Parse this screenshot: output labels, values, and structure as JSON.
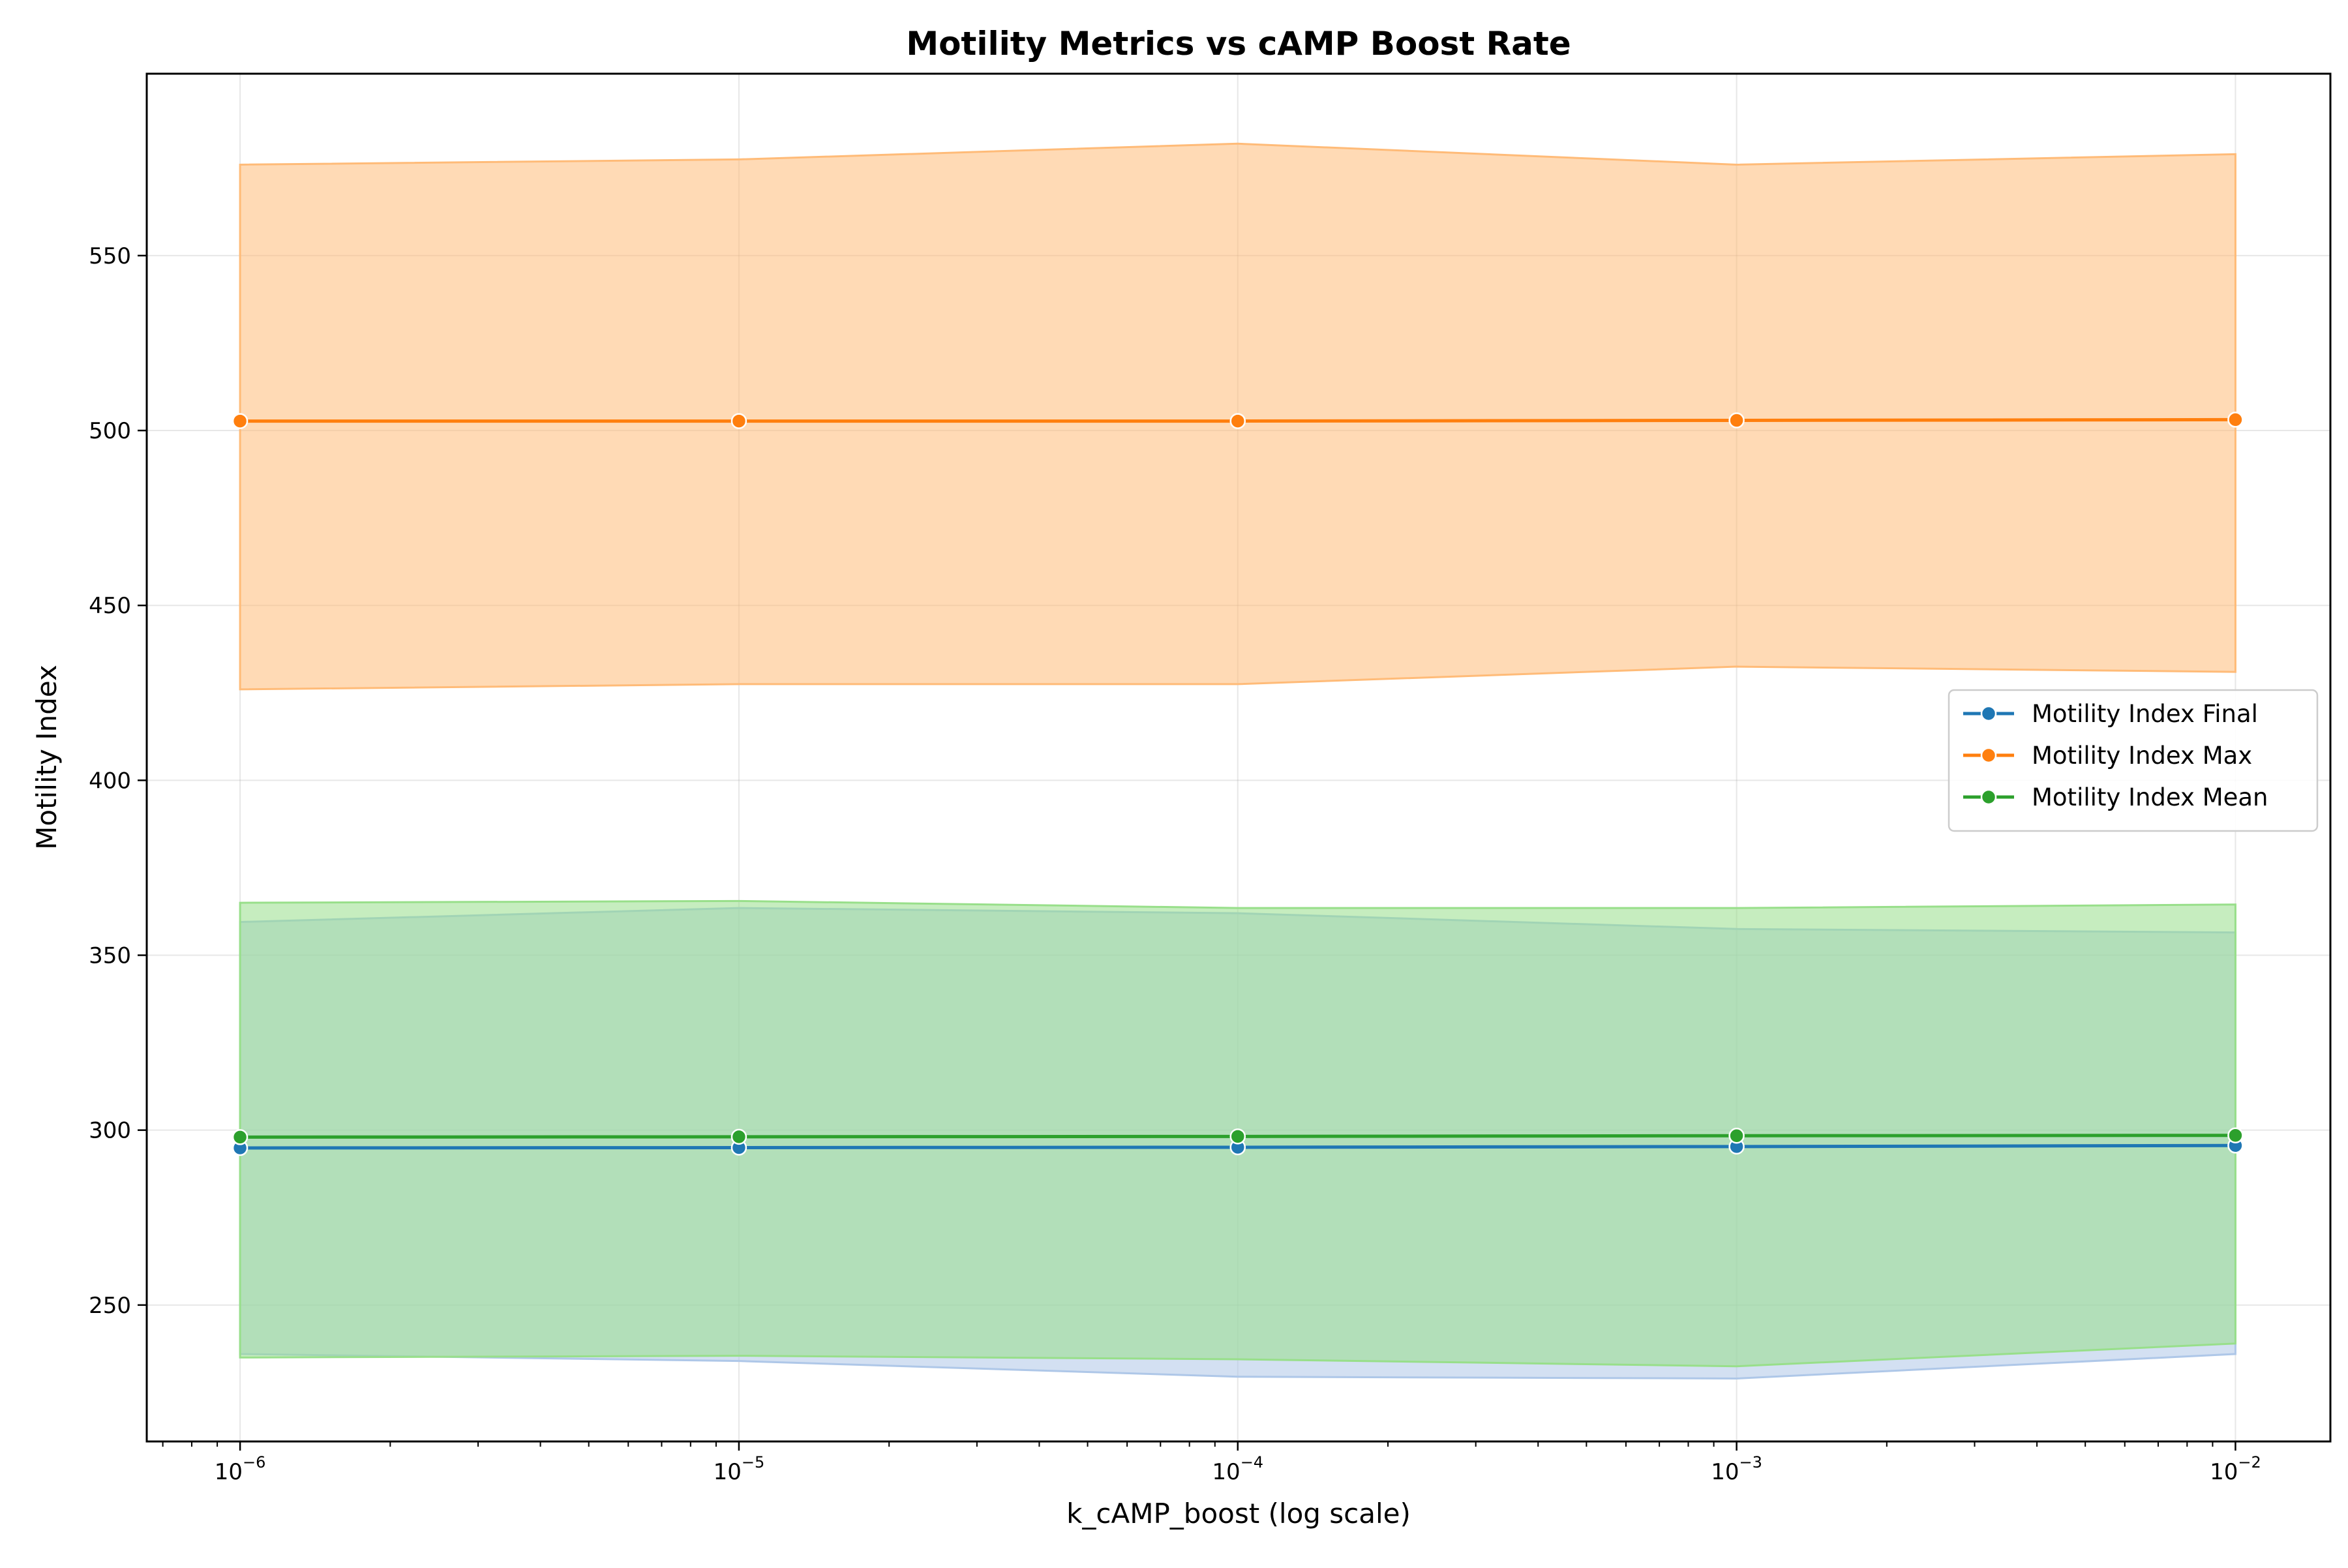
{
  "chart_data": {
    "type": "line",
    "title": "Motility Metrics vs cAMP Boost Rate",
    "xlabel": "k_cAMP_boost (log scale)",
    "ylabel": "Motility Index",
    "x_scale": "log",
    "x": [
      1e-06,
      1e-05,
      0.0001,
      0.001,
      0.01
    ],
    "xlim": [
      6.5e-07,
      0.0155
    ],
    "ylim": [
      211,
      602
    ],
    "x_ticks": [
      {
        "value": 1e-06,
        "base": "10",
        "exp": "−6"
      },
      {
        "value": 1e-05,
        "base": "10",
        "exp": "−5"
      },
      {
        "value": 0.0001,
        "base": "10",
        "exp": "−4"
      },
      {
        "value": 0.001,
        "base": "10",
        "exp": "−3"
      },
      {
        "value": 0.01,
        "base": "10",
        "exp": "−2"
      }
    ],
    "y_ticks": [
      "250",
      "300",
      "350",
      "400",
      "450",
      "500",
      "550"
    ],
    "grid": true,
    "legend_position": "right",
    "series": [
      {
        "name": "Motility Index Final",
        "color": "#1f77b4",
        "fill_color": "#aec7e8",
        "values": [
          294.9,
          295.0,
          295.1,
          295.3,
          295.6
        ],
        "band_upper": [
          359.5,
          363.5,
          362.0,
          357.5,
          356.5
        ],
        "band_lower": [
          236.0,
          234.0,
          229.5,
          229.0,
          236.0
        ]
      },
      {
        "name": "Motility Index Max",
        "color": "#ff7f0e",
        "fill_color": "#ffbb78",
        "values": [
          502.7,
          502.7,
          502.7,
          502.9,
          503.1
        ],
        "band_upper": [
          576.0,
          577.5,
          582.0,
          576.0,
          579.0
        ],
        "band_lower": [
          426.0,
          427.5,
          427.5,
          432.5,
          431.0
        ]
      },
      {
        "name": "Motility Index Mean",
        "color": "#2ca02c",
        "fill_color": "#98df8a",
        "values": [
          298.0,
          298.1,
          298.2,
          298.4,
          298.5
        ],
        "band_upper": [
          365.0,
          365.5,
          363.5,
          363.5,
          364.5
        ],
        "band_lower": [
          235.0,
          235.5,
          234.5,
          232.5,
          239.0
        ]
      }
    ]
  }
}
